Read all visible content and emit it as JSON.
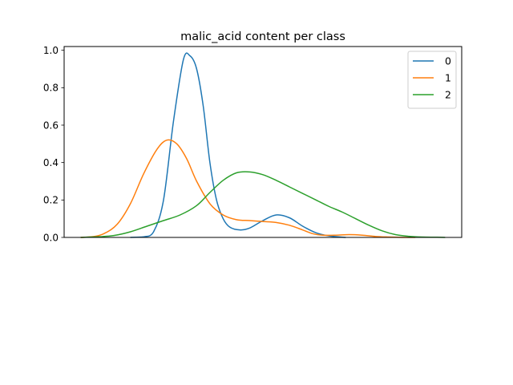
{
  "chart_data": {
    "type": "line",
    "title": "malic_acid content per class",
    "xlabel": "",
    "ylabel": "",
    "ylim": [
      0,
      1.02
    ],
    "xlim": [
      -0.2,
      1.0
    ],
    "x_ticks_visible": false,
    "y_ticks": [
      {
        "value": 0.0,
        "label": "0.0"
      },
      {
        "value": 0.2,
        "label": "0.2"
      },
      {
        "value": 0.4,
        "label": "0.4"
      },
      {
        "value": 0.6,
        "label": "0.6"
      },
      {
        "value": 0.8,
        "label": "0.8"
      },
      {
        "value": 1.0,
        "label": "1.0"
      }
    ],
    "grid": false,
    "legend_placement": "top-right",
    "series": [
      {
        "name": "0",
        "color": "#1f77b4",
        "x": [
          0.0,
          0.04,
          0.07,
          0.1,
          0.13,
          0.16,
          0.18,
          0.2,
          0.22,
          0.24,
          0.26,
          0.28,
          0.3,
          0.33,
          0.36,
          0.4,
          0.44,
          0.48,
          0.52,
          0.56,
          0.6,
          0.65
        ],
        "y": [
          0.0,
          0.003,
          0.03,
          0.2,
          0.62,
          0.95,
          0.97,
          0.9,
          0.7,
          0.4,
          0.2,
          0.1,
          0.055,
          0.04,
          0.05,
          0.09,
          0.12,
          0.105,
          0.06,
          0.025,
          0.008,
          0.0
        ]
      },
      {
        "name": "1",
        "color": "#ff7f0e",
        "x": [
          -0.15,
          -0.11,
          -0.08,
          -0.04,
          0.0,
          0.04,
          0.08,
          0.11,
          0.14,
          0.17,
          0.2,
          0.24,
          0.28,
          0.32,
          0.36,
          0.4,
          0.44,
          0.48,
          0.52,
          0.55,
          0.58,
          0.62,
          0.66,
          0.7,
          0.74,
          0.78,
          0.82,
          0.86
        ],
        "y": [
          0.0,
          0.005,
          0.02,
          0.07,
          0.18,
          0.34,
          0.47,
          0.52,
          0.5,
          0.42,
          0.3,
          0.18,
          0.12,
          0.095,
          0.09,
          0.085,
          0.08,
          0.065,
          0.04,
          0.02,
          0.012,
          0.012,
          0.015,
          0.012,
          0.005,
          0.002,
          0.0,
          0.0
        ]
      },
      {
        "name": "2",
        "color": "#2ca02c",
        "x": [
          -0.15,
          -0.1,
          -0.05,
          0.0,
          0.05,
          0.1,
          0.15,
          0.2,
          0.24,
          0.28,
          0.32,
          0.36,
          0.4,
          0.44,
          0.48,
          0.52,
          0.56,
          0.6,
          0.64,
          0.68,
          0.72,
          0.76,
          0.8,
          0.84,
          0.88,
          0.92,
          0.95
        ],
        "y": [
          0.0,
          0.003,
          0.01,
          0.03,
          0.06,
          0.09,
          0.12,
          0.17,
          0.24,
          0.305,
          0.345,
          0.35,
          0.335,
          0.305,
          0.27,
          0.235,
          0.2,
          0.165,
          0.135,
          0.1,
          0.065,
          0.035,
          0.015,
          0.006,
          0.002,
          0.001,
          0.0
        ]
      }
    ]
  }
}
